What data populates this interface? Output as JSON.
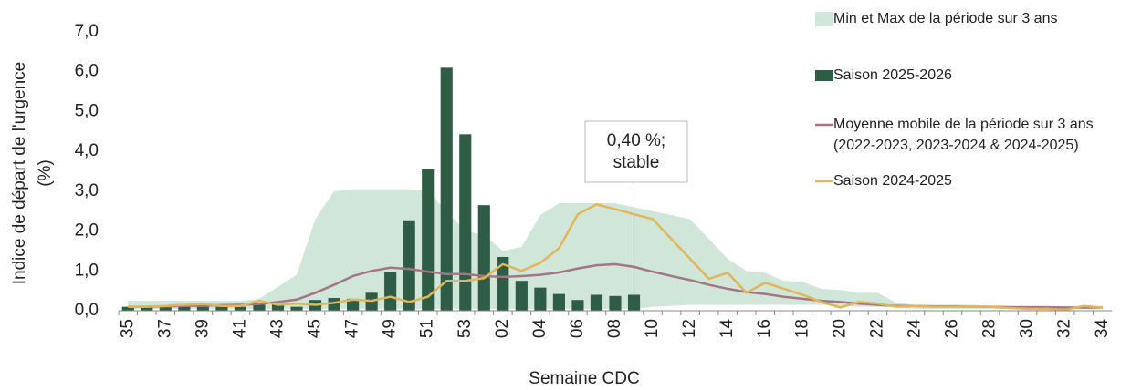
{
  "chart_data": {
    "type": "combo",
    "ylabel": [
      "Indice de départ de l'urgence",
      "(%)"
    ],
    "xlabel": "Semaine CDC",
    "categories": [
      "35",
      null,
      "37",
      null,
      "39",
      null,
      "41",
      null,
      "43",
      null,
      "45",
      null,
      "47",
      null,
      "49",
      null,
      "51",
      null,
      "53",
      null,
      "02",
      null,
      "04",
      null,
      "06",
      null,
      "08",
      null,
      "10",
      null,
      "12",
      null,
      "14",
      null,
      "16",
      null,
      "18",
      null,
      "20",
      null,
      "22",
      null,
      "24",
      null,
      "26",
      null,
      "28",
      null,
      "30",
      null,
      "32",
      null,
      "34"
    ],
    "ylim": [
      0,
      7
    ],
    "yticks": [
      {
        "value": 0,
        "label": "0,0"
      },
      {
        "value": 1,
        "label": "1,0"
      },
      {
        "value": 2,
        "label": "2,0"
      },
      {
        "value": 3,
        "label": "3,0"
      },
      {
        "value": 4,
        "label": "4,0"
      },
      {
        "value": 5,
        "label": "5,0"
      },
      {
        "value": 6,
        "label": "6,0"
      },
      {
        "value": 7,
        "label": "7,0"
      }
    ],
    "grid": false,
    "legend": "right",
    "series": [
      {
        "name": "Min et Max de la période sur 3 ans",
        "type": "area_range",
        "color": "#cfe6d9",
        "min": [
          0.05,
          0.05,
          0.05,
          0.05,
          0.05,
          0.05,
          0.05,
          0.05,
          0.05,
          0.05,
          0.05,
          0.05,
          0.05,
          0.05,
          0.05,
          0.05,
          0.05,
          0.05,
          0.05,
          0.05,
          0.05,
          0.05,
          0.05,
          0.05,
          0.05,
          0.05,
          0.05,
          0.05,
          0.1,
          0.12,
          0.15,
          0.15,
          0.15,
          0.15,
          0.15,
          0.15,
          0.15,
          0.15,
          0.12,
          0.1,
          0.1,
          0.08,
          0.05,
          0.05,
          0.05,
          0.05,
          0.05,
          0.05,
          0.05,
          0.05,
          0.05,
          0.05,
          0.05
        ],
        "max": [
          0.25,
          0.25,
          0.25,
          0.25,
          0.25,
          0.25,
          0.25,
          0.3,
          0.6,
          0.9,
          2.3,
          3.0,
          3.05,
          3.05,
          3.05,
          3.05,
          3.0,
          2.5,
          2.0,
          1.9,
          1.5,
          1.6,
          2.4,
          2.7,
          2.7,
          2.7,
          2.7,
          2.6,
          2.5,
          2.4,
          2.3,
          1.8,
          1.3,
          1.0,
          0.95,
          0.75,
          0.72,
          0.55,
          0.52,
          0.45,
          0.45,
          0.2,
          0.15,
          0.15,
          0.15,
          0.15,
          0.13,
          0.13,
          0.12,
          0.12,
          0.12,
          0.12,
          0.12
        ]
      },
      {
        "name": "Saison 2025-2026",
        "type": "bar",
        "color": "#2e5c44",
        "values": [
          0.1,
          0.1,
          0.1,
          0.1,
          0.1,
          0.1,
          0.1,
          0.15,
          0.15,
          0.1,
          0.27,
          0.32,
          0.3,
          0.45,
          0.97,
          2.27,
          3.55,
          6.1,
          4.43,
          2.65,
          1.35,
          0.75,
          0.58,
          0.42,
          0.27,
          0.4,
          0.37,
          0.4,
          null,
          null,
          null,
          null,
          null,
          null,
          null,
          null,
          null,
          null,
          null,
          null,
          null,
          null,
          null,
          null,
          null,
          null,
          null,
          null,
          null,
          null,
          null,
          null,
          null
        ]
      },
      {
        "name": "Moyenne mobile de la période sur 3 ans\n(2022-2023, 2023-2024 & 2024-2025)",
        "type": "line",
        "color": "#a47585",
        "values": [
          0.1,
          0.1,
          0.11,
          0.12,
          0.13,
          0.14,
          0.15,
          0.17,
          0.22,
          0.28,
          0.45,
          0.65,
          0.87,
          1.0,
          1.08,
          1.05,
          0.98,
          0.92,
          0.92,
          0.87,
          0.85,
          0.87,
          0.9,
          0.96,
          1.06,
          1.14,
          1.17,
          1.1,
          0.98,
          0.87,
          0.77,
          0.65,
          0.55,
          0.47,
          0.42,
          0.35,
          0.3,
          0.25,
          0.22,
          0.18,
          0.15,
          0.12,
          0.12,
          0.11,
          0.11,
          0.1,
          0.1,
          0.09,
          0.09,
          0.09,
          0.08,
          0.08,
          0.08
        ]
      },
      {
        "name": "Saison 2024-2025",
        "type": "line",
        "color": "#e1b65a",
        "values": [
          0.1,
          0.1,
          0.12,
          0.15,
          0.17,
          0.12,
          0.12,
          0.25,
          0.15,
          0.18,
          0.15,
          0.2,
          0.28,
          0.25,
          0.35,
          0.22,
          0.35,
          0.75,
          0.75,
          0.82,
          1.17,
          1.0,
          1.2,
          1.57,
          2.42,
          2.67,
          2.55,
          2.42,
          2.3,
          1.8,
          1.3,
          0.8,
          0.95,
          0.45,
          0.7,
          0.55,
          0.4,
          0.22,
          0.08,
          0.22,
          0.18,
          0.1,
          0.12,
          0.1,
          0.1,
          0.1,
          0.1,
          0.07,
          0.05,
          0.05,
          0.02,
          0.12,
          0.08
        ]
      }
    ],
    "annotation": [
      "0,40 %;",
      "stable"
    ]
  }
}
